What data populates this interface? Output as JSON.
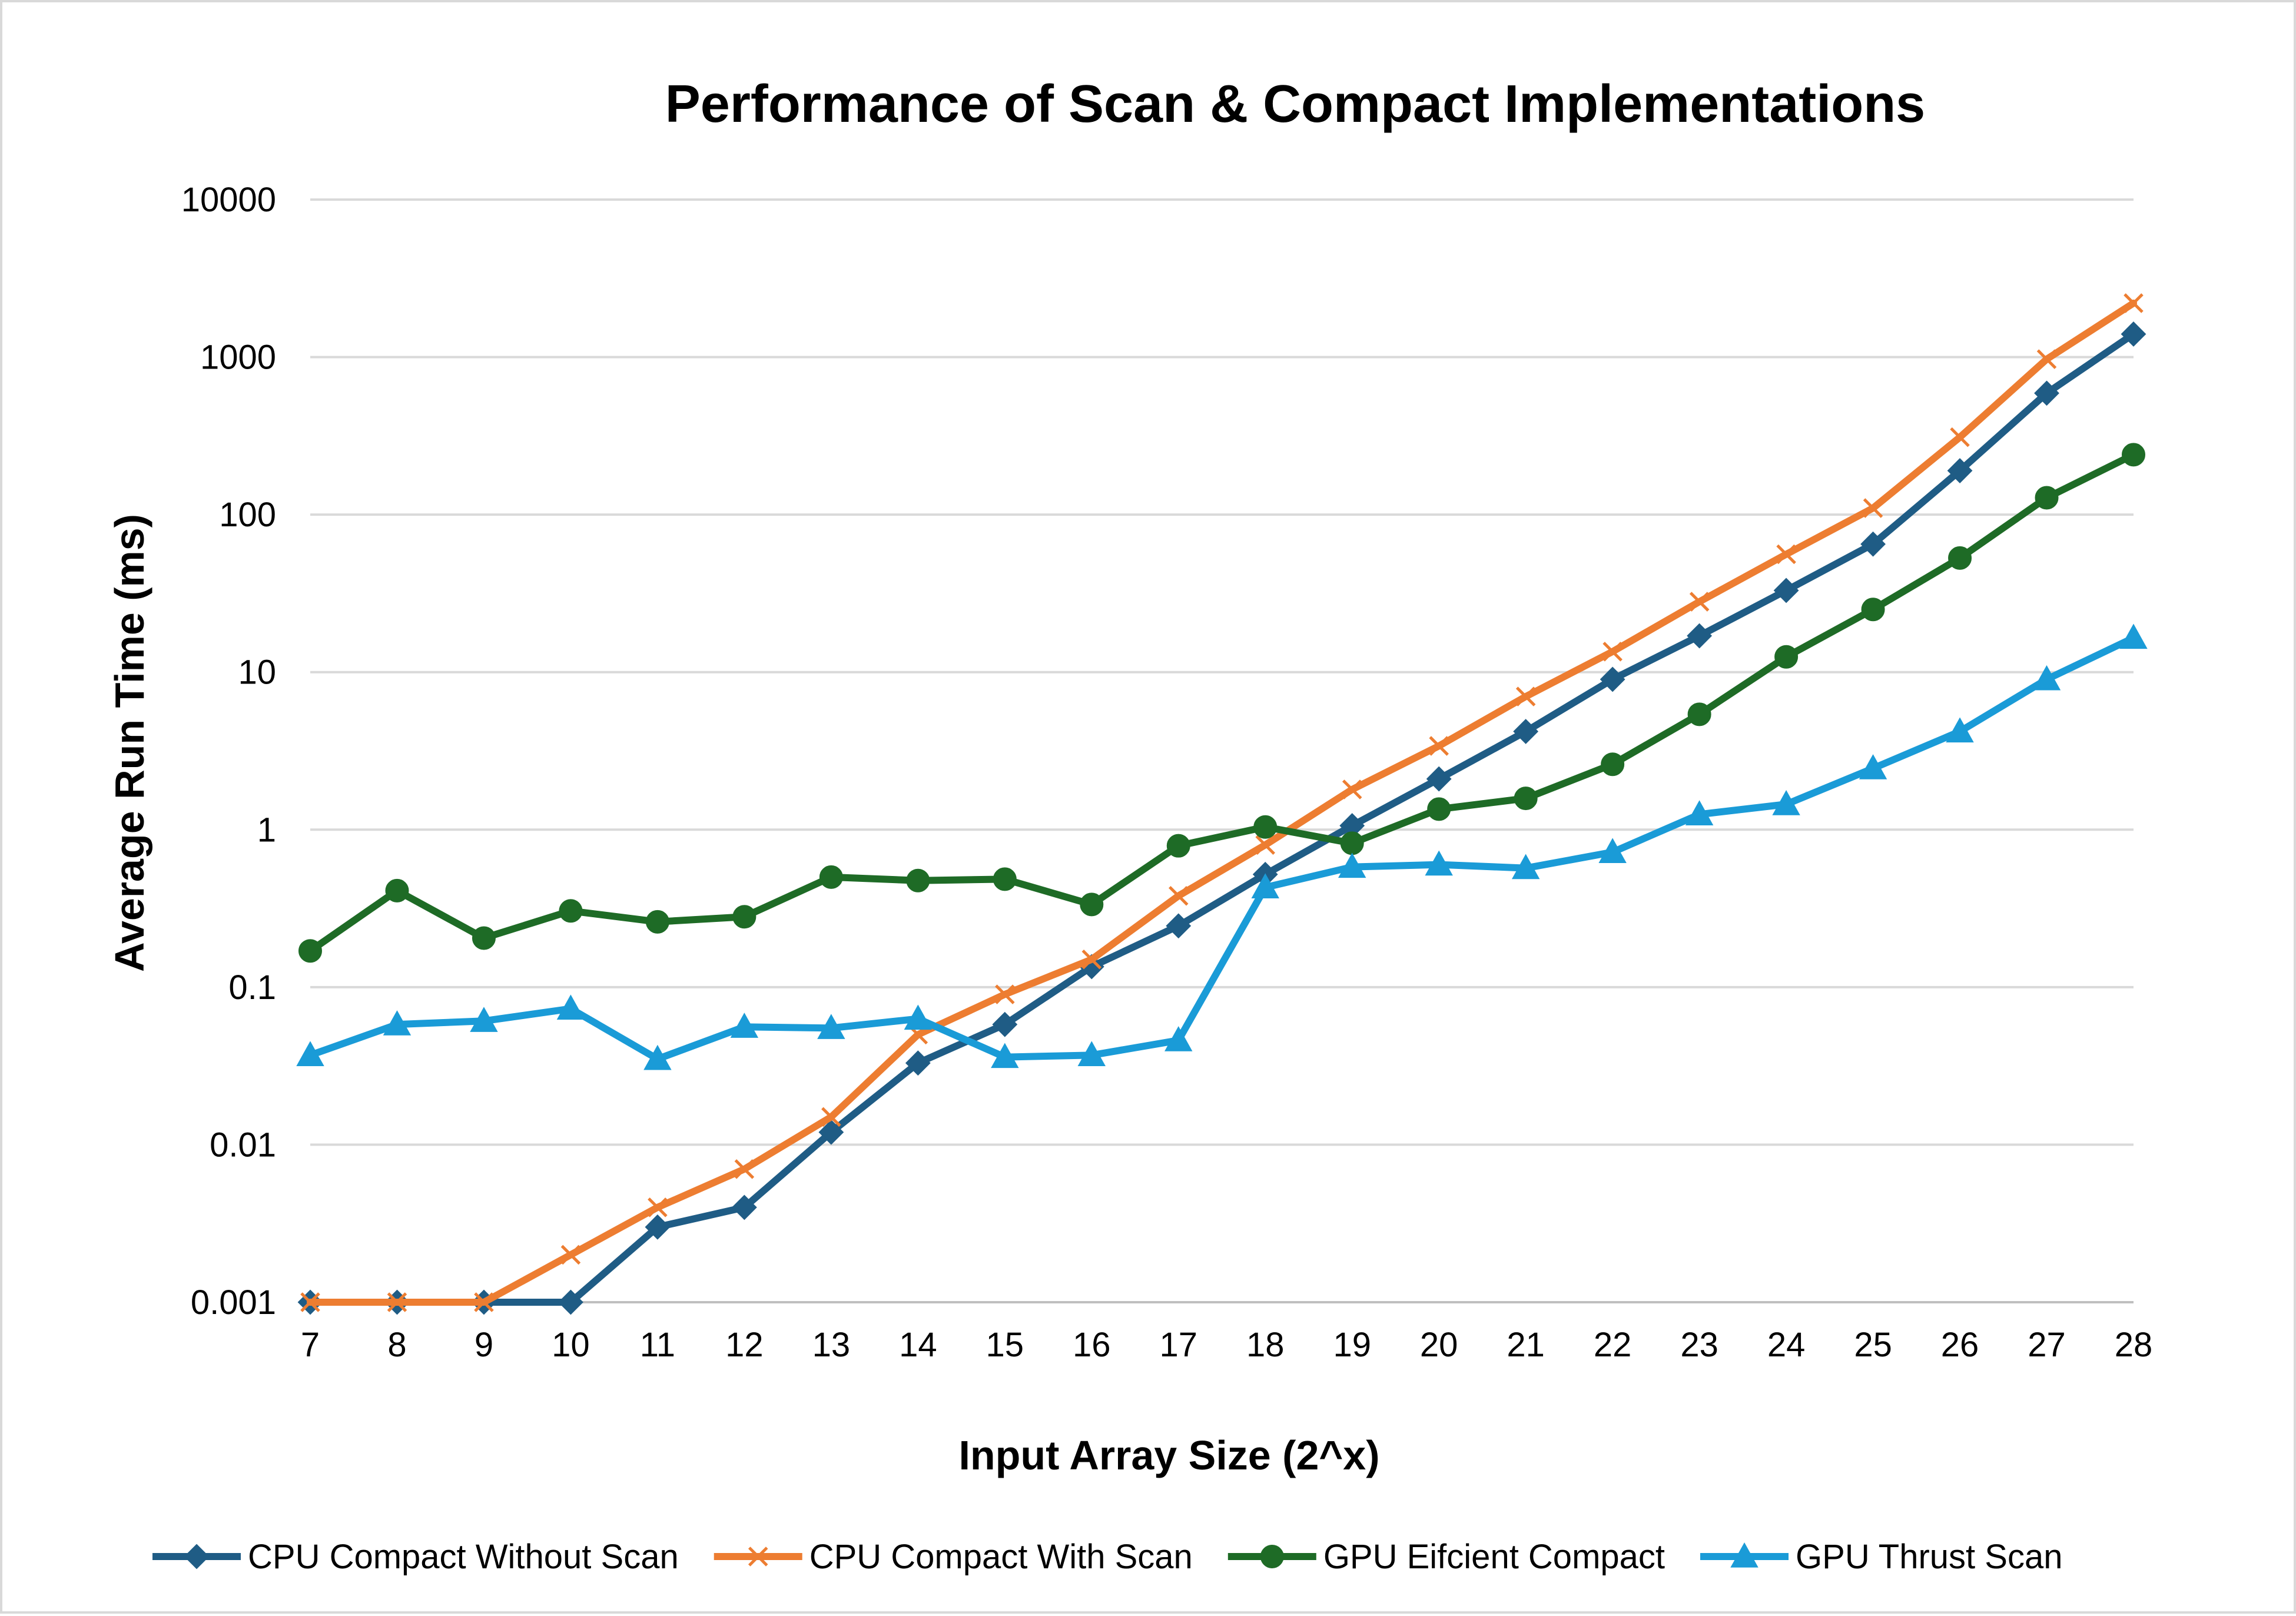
{
  "chart_data": {
    "type": "line",
    "title": "Performance of Scan & Compact Implementations",
    "xlabel": "Input Array Size (2^x)",
    "ylabel": "Average Run Time (ms)",
    "x": [
      7,
      8,
      9,
      10,
      11,
      12,
      13,
      14,
      15,
      16,
      17,
      18,
      19,
      20,
      21,
      22,
      23,
      24,
      25,
      26,
      27,
      28
    ],
    "y_scale": "log",
    "ylim": [
      0.001,
      10000
    ],
    "y_ticks": [
      "0.001",
      "0.01",
      "0.1",
      "1",
      "10",
      "100",
      "1000",
      "10000"
    ],
    "grid": "horizontal",
    "legend_position": "bottom",
    "series": [
      {
        "name": "CPU Compact Without Scan",
        "color": "#1f5c85",
        "marker": "diamond",
        "values": [
          0.001,
          0.001,
          0.001,
          0.001,
          0.003,
          0.004,
          0.012,
          0.033,
          0.058,
          0.135,
          0.245,
          0.52,
          1.06,
          2.1,
          4.2,
          9.0,
          17.0,
          33.0,
          65.0,
          190.0,
          590.0,
          1400.0
        ]
      },
      {
        "name": "CPU Compact With Scan",
        "color": "#ed7d31",
        "marker": "x",
        "values": [
          0.001,
          0.001,
          0.001,
          0.002,
          0.004,
          0.007,
          0.015,
          0.05,
          0.09,
          0.15,
          0.38,
          0.8,
          1.8,
          3.4,
          7.0,
          13.5,
          28.0,
          56.0,
          110.0,
          310.0,
          970.0,
          2200.0
        ]
      },
      {
        "name": "GPU Eifcient Compact",
        "color": "#1e6b26",
        "marker": "circle",
        "values": [
          0.17,
          0.41,
          0.205,
          0.305,
          0.26,
          0.28,
          0.5,
          0.475,
          0.485,
          0.335,
          0.79,
          1.04,
          0.82,
          1.35,
          1.58,
          2.6,
          5.4,
          12.5,
          25.0,
          53.0,
          128.0,
          240.0
        ]
      },
      {
        "name": "GPU Thrust Scan",
        "color": "#1a9bd7",
        "marker": "triangle",
        "values": [
          0.037,
          0.058,
          0.061,
          0.073,
          0.035,
          0.056,
          0.055,
          0.063,
          0.036,
          0.037,
          0.046,
          0.43,
          0.58,
          0.6,
          0.57,
          0.72,
          1.25,
          1.45,
          2.45,
          4.2,
          9.0,
          16.5
        ]
      }
    ]
  }
}
